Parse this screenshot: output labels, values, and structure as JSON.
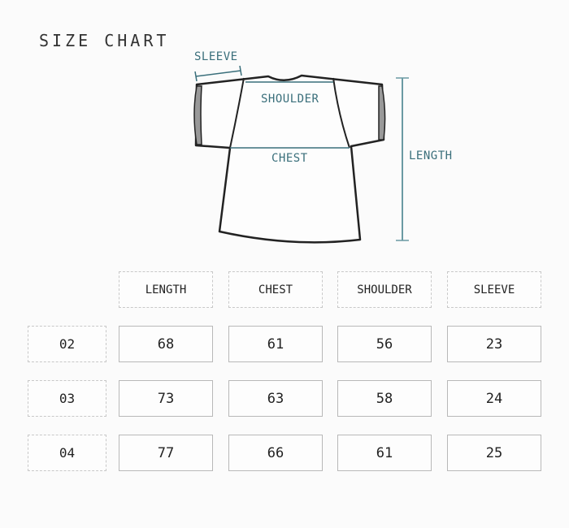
{
  "title": "SIZE CHART",
  "diagram": {
    "labels": {
      "sleeve": "SLEEVE",
      "shoulder": "SHOULDER",
      "chest": "CHEST",
      "length": "LENGTH"
    },
    "accent_color": "#3a6f7b"
  },
  "table": {
    "headers": [
      "LENGTH",
      "CHEST",
      "SHOULDER",
      "SLEEVE"
    ],
    "rows": [
      {
        "size": "02",
        "values": [
          "68",
          "61",
          "56",
          "23"
        ]
      },
      {
        "size": "03",
        "values": [
          "73",
          "63",
          "58",
          "24"
        ]
      },
      {
        "size": "04",
        "values": [
          "77",
          "66",
          "61",
          "25"
        ]
      }
    ]
  }
}
